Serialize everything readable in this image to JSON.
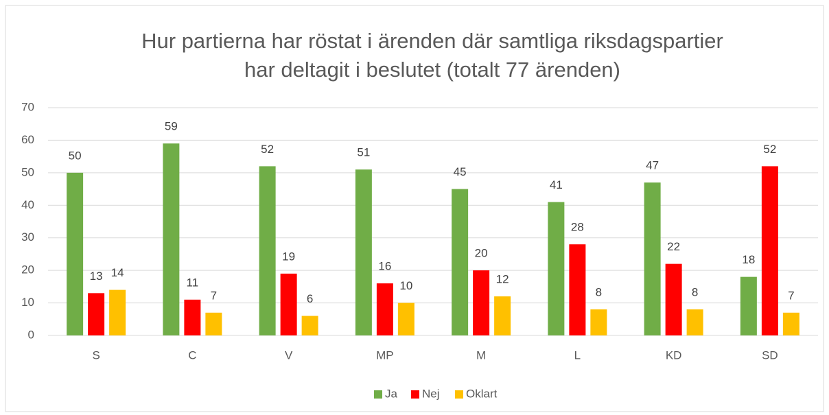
{
  "chart_data": {
    "type": "bar",
    "title": [
      "Hur partierna har röstat i ärenden där samtliga riksdagspartier",
      "har deltagit i beslutet (totalt 77 ärenden)"
    ],
    "categories": [
      "S",
      "C",
      "V",
      "MP",
      "M",
      "L",
      "KD",
      "SD"
    ],
    "series": [
      {
        "name": "Ja",
        "color": "#70ad47",
        "values": [
          50,
          59,
          52,
          51,
          45,
          41,
          47,
          18
        ]
      },
      {
        "name": "Nej",
        "color": "#ff0000",
        "values": [
          13,
          11,
          19,
          16,
          20,
          28,
          22,
          52
        ]
      },
      {
        "name": "Oklart",
        "color": "#ffc000",
        "values": [
          14,
          7,
          6,
          10,
          12,
          8,
          8,
          7
        ]
      }
    ],
    "ylim": [
      0,
      70
    ],
    "yticks": [
      0,
      10,
      20,
      30,
      40,
      50,
      60,
      70
    ],
    "grid": true,
    "legend": "bottom"
  }
}
